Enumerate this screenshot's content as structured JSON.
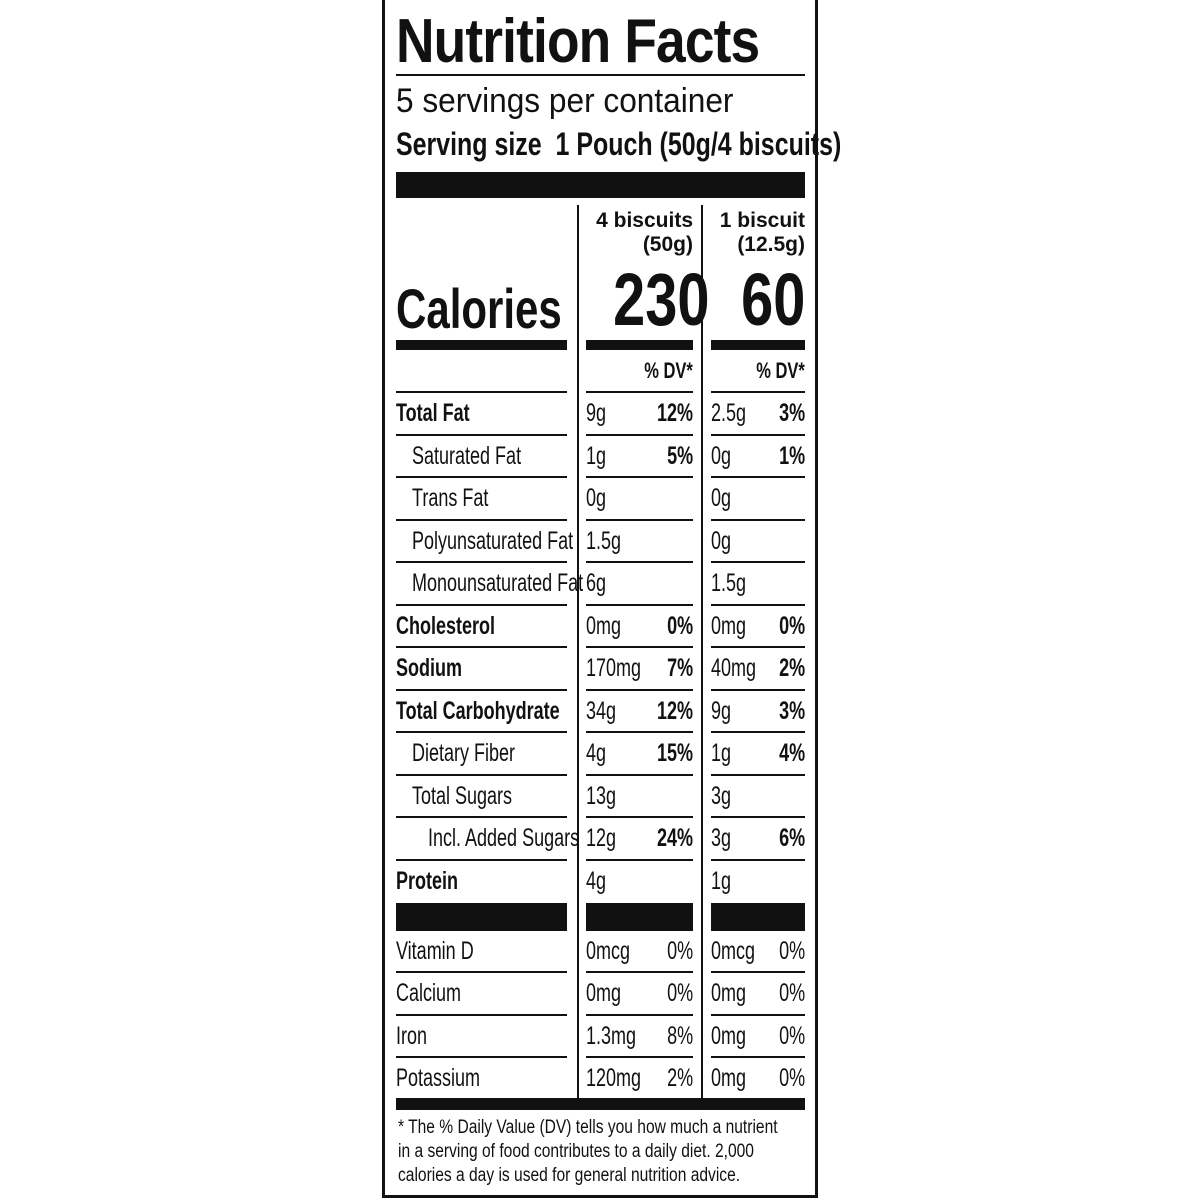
{
  "title": "Nutrition Facts",
  "servings_per_container": "5 servings per container",
  "serving_size_label": "Serving size",
  "serving_size_value": "1 Pouch (50g/4 biscuits)",
  "columns": [
    {
      "line1": "4 biscuits",
      "line2": "(50g)",
      "calories": "230",
      "dv_header": "% DV*"
    },
    {
      "line1": "1 biscuit",
      "line2": "(12.5g)",
      "calories": "60",
      "dv_header": "% DV*"
    }
  ],
  "calories_label": "Calories",
  "nutrients": [
    {
      "label": "Total Fat",
      "bold": true,
      "indent": 0,
      "c1_amt": "9g",
      "c1_dv": "12%",
      "c2_amt": "2.5g",
      "c2_dv": "3%"
    },
    {
      "label": "Saturated Fat",
      "bold": false,
      "indent": 1,
      "c1_amt": "1g",
      "c1_dv": "5%",
      "c2_amt": "0g",
      "c2_dv": "1%"
    },
    {
      "label": "Trans Fat",
      "bold": false,
      "indent": 1,
      "c1_amt": "0g",
      "c1_dv": "",
      "c2_amt": "0g",
      "c2_dv": ""
    },
    {
      "label": "Polyunsaturated Fat",
      "bold": false,
      "indent": 1,
      "c1_amt": "1.5g",
      "c1_dv": "",
      "c2_amt": "0g",
      "c2_dv": ""
    },
    {
      "label": "Monounsaturated Fat",
      "bold": false,
      "indent": 1,
      "c1_amt": "6g",
      "c1_dv": "",
      "c2_amt": "1.5g",
      "c2_dv": ""
    },
    {
      "label": "Cholesterol",
      "bold": true,
      "indent": 0,
      "c1_amt": "0mg",
      "c1_dv": "0%",
      "c2_amt": "0mg",
      "c2_dv": "0%"
    },
    {
      "label": "Sodium",
      "bold": true,
      "indent": 0,
      "c1_amt": "170mg",
      "c1_dv": "7%",
      "c2_amt": "40mg",
      "c2_dv": "2%"
    },
    {
      "label": "Total Carbohydrate",
      "bold": true,
      "indent": 0,
      "c1_amt": "34g",
      "c1_dv": "12%",
      "c2_amt": "9g",
      "c2_dv": "3%"
    },
    {
      "label": "Dietary Fiber",
      "bold": false,
      "indent": 1,
      "c1_amt": "4g",
      "c1_dv": "15%",
      "c2_amt": "1g",
      "c2_dv": "4%"
    },
    {
      "label": "Total Sugars",
      "bold": false,
      "indent": 1,
      "c1_amt": "13g",
      "c1_dv": "",
      "c2_amt": "3g",
      "c2_dv": ""
    },
    {
      "label": "Incl. Added Sugars",
      "bold": false,
      "indent": 2,
      "c1_amt": "12g",
      "c1_dv": "24%",
      "c2_amt": "3g",
      "c2_dv": "6%"
    },
    {
      "label": "Protein",
      "bold": true,
      "indent": 0,
      "c1_amt": "4g",
      "c1_dv": "",
      "c2_amt": "1g",
      "c2_dv": ""
    }
  ],
  "vitamins": [
    {
      "label": "Vitamin D",
      "c1_amt": "0mcg",
      "c1_dv": "0%",
      "c2_amt": "0mcg",
      "c2_dv": "0%"
    },
    {
      "label": "Calcium",
      "c1_amt": "0mg",
      "c1_dv": "0%",
      "c2_amt": "0mg",
      "c2_dv": "0%"
    },
    {
      "label": "Iron",
      "c1_amt": "1.3mg",
      "c1_dv": "8%",
      "c2_amt": "0mg",
      "c2_dv": "0%"
    },
    {
      "label": "Potassium",
      "c1_amt": "120mg",
      "c1_dv": "2%",
      "c2_amt": "0mg",
      "c2_dv": "0%"
    }
  ],
  "footnote": [
    "* The % Daily Value (DV) tells you how much a nutrient",
    "in a serving of food contributes to a daily diet. 2,000",
    "calories a day is used for general nutrition advice."
  ]
}
